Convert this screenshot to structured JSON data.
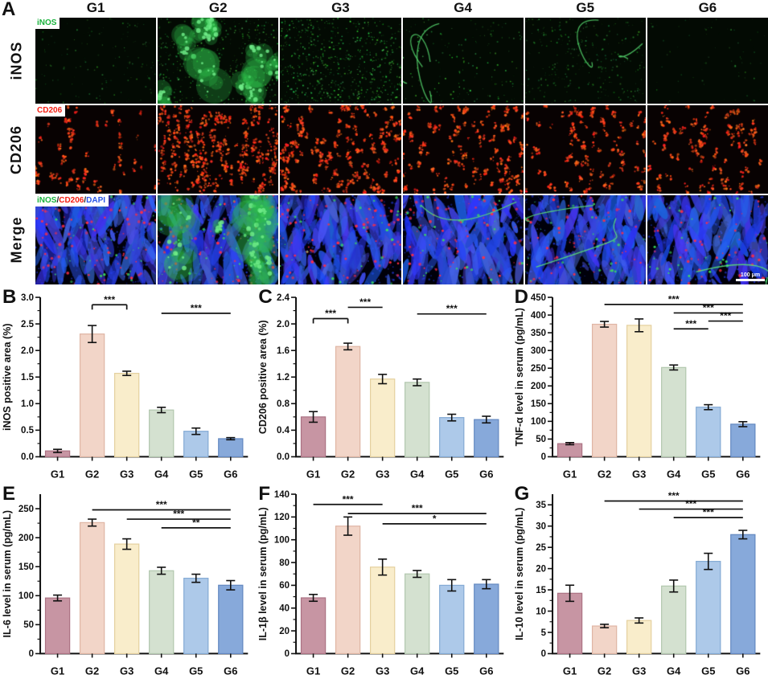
{
  "figure": {
    "panelA": {
      "label": "A",
      "columns": [
        "G1",
        "G2",
        "G3",
        "G4",
        "G5",
        "G6"
      ],
      "row_labels": [
        "iNOS",
        "CD206",
        "Merge"
      ],
      "tags": {
        "inos": {
          "text": "iNOS",
          "color": "#19b33c"
        },
        "cd206": {
          "text": "CD206",
          "color": "#f51d10"
        },
        "merge_parts": [
          {
            "text": "iNOS",
            "color": "#19b33c"
          },
          {
            "text": "/",
            "color": "#1a1a1a"
          },
          {
            "text": "CD206",
            "color": "#f51d10"
          },
          {
            "text": "/",
            "color": "#1a1a1a"
          },
          {
            "text": "DAPI",
            "color": "#2a57e8"
          }
        ]
      },
      "scale_bar_text": "100 μm",
      "tiles": {
        "inos": [
          {
            "dots": 140,
            "alpha": 0.55
          },
          {
            "dots": 420,
            "blobs": 10
          },
          {
            "dots": 680,
            "alpha": 0.9
          },
          {
            "dots": 160,
            "curves": 3
          },
          {
            "dots": 300,
            "alpha": 0.6,
            "curves": 2
          },
          {
            "dots": 70,
            "alpha": 0.45
          }
        ],
        "cd206": [
          {
            "clusters": 55
          },
          {
            "clusters": 150,
            "elong": true
          },
          {
            "clusters": 140
          },
          {
            "clusters": 105
          },
          {
            "clusters": 85
          },
          {
            "clusters": 85
          }
        ],
        "merge": [
          {
            "stria": 120,
            "red": 80,
            "green": 30
          },
          {
            "stria": 110,
            "red": 70,
            "green": 40,
            "gblobs": 9
          },
          {
            "stria": 130,
            "red": 75,
            "green": 30
          },
          {
            "stria": 125,
            "red": 70,
            "green": 35,
            "gcurves": 1
          },
          {
            "stria": 120,
            "red": 60,
            "green": 30,
            "gcurves": 2
          },
          {
            "stria": 125,
            "red": 55,
            "green": 30,
            "gcurves": 1
          }
        ]
      }
    },
    "bar_fill_colors": [
      "#c795a3",
      "#f2d5c8",
      "#f9edcb",
      "#d4e1d0",
      "#adc9e9",
      "#87a9da"
    ],
    "bar_border_colors": [
      "#ab7283",
      "#dfb5a4",
      "#e4d09f",
      "#b2c7ae",
      "#84aad4",
      "#6388c0"
    ],
    "axis_color": "#111111"
  },
  "chart_data": [
    {
      "panel": "B",
      "type": "bar",
      "categories": [
        "G1",
        "G2",
        "G3",
        "G4",
        "G5",
        "G6"
      ],
      "values": [
        0.11,
        2.31,
        1.57,
        0.88,
        0.48,
        0.34
      ],
      "errors": [
        0.03,
        0.16,
        0.04,
        0.05,
        0.06,
        0.02
      ],
      "title": "",
      "xlabel": "",
      "ylabel": "iNOS positive area (%)",
      "ylim": [
        0,
        3.0
      ],
      "ytick_step": 0.5,
      "tick_decimals": 1,
      "significance": [
        {
          "from": "G2",
          "to": "G3",
          "y": 2.86,
          "label": "***",
          "bracket": true
        },
        {
          "from": "G4",
          "to": "G6",
          "y": 2.7,
          "label": "***"
        }
      ]
    },
    {
      "panel": "C",
      "type": "bar",
      "categories": [
        "G1",
        "G2",
        "G3",
        "G4",
        "G5",
        "G6"
      ],
      "values": [
        0.6,
        1.66,
        1.17,
        1.12,
        0.59,
        0.56
      ],
      "errors": [
        0.08,
        0.05,
        0.07,
        0.05,
        0.05,
        0.05
      ],
      "title": "",
      "xlabel": "",
      "ylabel": "CD206 positive area (%)",
      "ylim": [
        0,
        2.4
      ],
      "ytick_step": 0.4,
      "tick_decimals": 1,
      "significance": [
        {
          "from": "G1",
          "to": "G2",
          "y": 2.08,
          "label": "***",
          "bracket": true
        },
        {
          "from": "G2",
          "to": "G3",
          "y": 2.25,
          "label": "***"
        },
        {
          "from": "G4",
          "to": "G6",
          "y": 2.15,
          "label": "***"
        }
      ]
    },
    {
      "panel": "D",
      "type": "bar",
      "categories": [
        "G1",
        "G2",
        "G3",
        "G4",
        "G5",
        "G6"
      ],
      "values": [
        37,
        374,
        371,
        252,
        140,
        92
      ],
      "errors": [
        3,
        8,
        18,
        7,
        7,
        7
      ],
      "title": "",
      "xlabel": "",
      "ylabel": "TNF-α level in serum (pg/mL)",
      "ylim": [
        0,
        450
      ],
      "ytick_step": 50,
      "tick_decimals": 0,
      "significance": [
        {
          "from": "G2",
          "to": "G6",
          "y": 430,
          "label": "***"
        },
        {
          "from": "G4",
          "to": "G6",
          "y": 406,
          "label": "***"
        },
        {
          "from": "G5",
          "to": "G6",
          "y": 383,
          "label": "***"
        },
        {
          "from": "G4",
          "to": "G5",
          "y": 361,
          "label": "***"
        }
      ]
    },
    {
      "panel": "E",
      "type": "bar",
      "categories": [
        "G1",
        "G2",
        "G3",
        "G4",
        "G5",
        "G6"
      ],
      "values": [
        96,
        226,
        189,
        143,
        130,
        118
      ],
      "errors": [
        5,
        6,
        9,
        6,
        7,
        8
      ],
      "title": "",
      "xlabel": "",
      "ylabel": "IL-6 level in serum (pg/mL)",
      "ylim": [
        0,
        275
      ],
      "ytick_step": 50,
      "tick_decimals": 0,
      "significance": [
        {
          "from": "G2",
          "to": "G6",
          "y": 248,
          "label": "***"
        },
        {
          "from": "G3",
          "to": "G6",
          "y": 232,
          "label": "***"
        },
        {
          "from": "G4",
          "to": "G6",
          "y": 217,
          "label": "**"
        }
      ]
    },
    {
      "panel": "F",
      "type": "bar",
      "categories": [
        "G1",
        "G2",
        "G3",
        "G4",
        "G5",
        "G6"
      ],
      "values": [
        49,
        112,
        76,
        70,
        60,
        61
      ],
      "errors": [
        3,
        8,
        7,
        3,
        5,
        4
      ],
      "title": "",
      "xlabel": "",
      "ylabel": "IL-1β level in serum (pg/mL)",
      "ylim": [
        0,
        140
      ],
      "ytick_step": 20,
      "tick_decimals": 0,
      "significance": [
        {
          "from": "G1",
          "to": "G3",
          "y": 131,
          "label": "***"
        },
        {
          "from": "G2",
          "to": "G6",
          "y": 123,
          "label": "***"
        },
        {
          "from": "G3",
          "to": "G6",
          "y": 114,
          "label": "*"
        }
      ]
    },
    {
      "panel": "G",
      "type": "bar",
      "categories": [
        "G1",
        "G2",
        "G3",
        "G4",
        "G5",
        "G6"
      ],
      "values": [
        14.2,
        6.5,
        7.8,
        15.9,
        21.7,
        28.0
      ],
      "errors": [
        1.9,
        0.4,
        0.6,
        1.4,
        1.9,
        1.0
      ],
      "title": "",
      "xlabel": "",
      "ylabel": "IL-10 level in serum (pg/mL)",
      "ylim": [
        0,
        37.5
      ],
      "ytick_step": 5,
      "tick_decimals": 0,
      "significance": [
        {
          "from": "G2",
          "to": "G6",
          "y": 35.9,
          "label": "***"
        },
        {
          "from": "G3",
          "to": "G6",
          "y": 34.0,
          "label": "***"
        },
        {
          "from": "G4",
          "to": "G6",
          "y": 32.0,
          "label": "***"
        }
      ]
    }
  ]
}
